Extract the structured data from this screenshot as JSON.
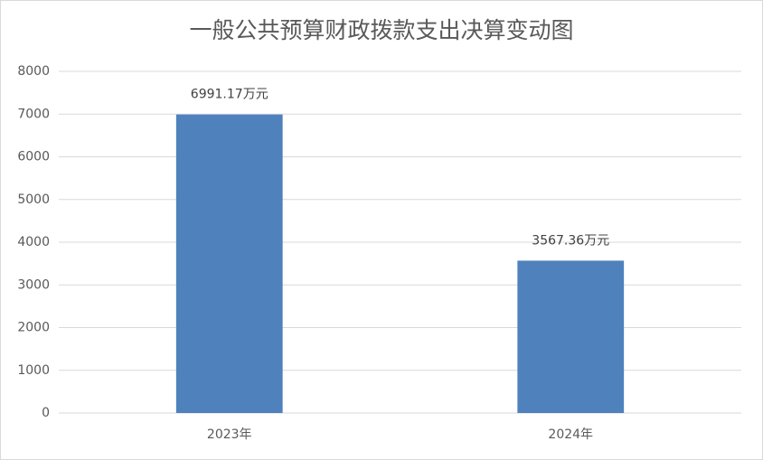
{
  "chart_data": {
    "type": "bar",
    "title": "一般公共预算财政拨款支出决算变动图",
    "categories": [
      "2023年",
      "2024年"
    ],
    "values": [
      6991.17,
      3567.36
    ],
    "value_labels": [
      "6991.17万元",
      "3567.36万元"
    ],
    "color": "#4f81bd",
    "ylim": [
      0,
      8000
    ],
    "yticks": [
      0,
      1000,
      2000,
      3000,
      4000,
      5000,
      6000,
      7000,
      8000
    ],
    "grid": true
  }
}
